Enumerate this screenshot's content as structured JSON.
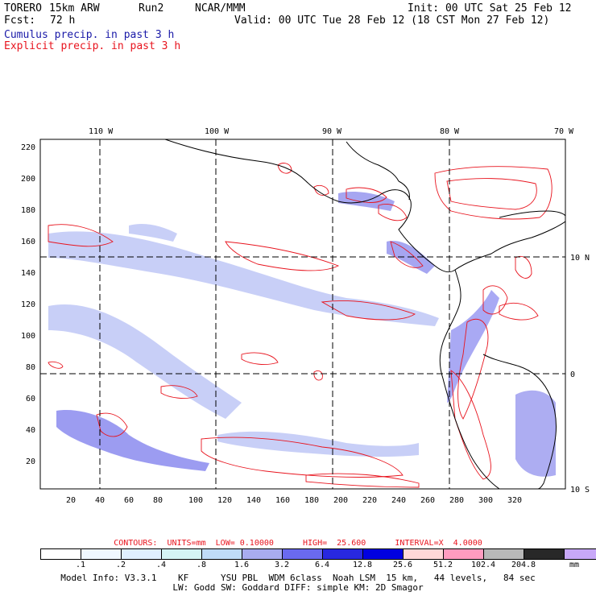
{
  "header": {
    "model": "TORERO",
    "grid": "15km ARW",
    "run": "Run2",
    "org": "NCAR/MMM",
    "init": "Init: 00 UTC Sat 25 Feb 12",
    "fcst_label": "Fcst:",
    "fcst_value": "72 h",
    "valid": "Valid: 00 UTC Tue 28 Feb 12 (18 CST Mon 27 Feb 12)",
    "field1": "Cumulus precip. in past 3 h",
    "field2": "Explicit precip. in past 3 h"
  },
  "map": {
    "top_lon_labels": [
      "110 W",
      "100 W",
      "90 W",
      "80 W",
      "70 W"
    ],
    "right_lat_labels": [
      "10 N",
      "0",
      "10 S"
    ],
    "left_grid_labels": [
      "220",
      "200",
      "180",
      "160",
      "140",
      "120",
      "100",
      "80",
      "60",
      "40",
      "20"
    ],
    "bottom_grid_labels": [
      "20",
      "40",
      "60",
      "80",
      "100",
      "120",
      "140",
      "160",
      "180",
      "200",
      "220",
      "240",
      "260",
      "280",
      "300",
      "320"
    ],
    "grid_lines": "dashed lat/lon every 10 degrees",
    "cumulus_color": "#3b3bdc",
    "explicit_color": "#e8141e",
    "coast_color": "#000000"
  },
  "contours": {
    "text": "CONTOURS:  UNITS=mm  LOW= 0.10000      HIGH=  25.600      INTERVAL=X  4.0000"
  },
  "legend": {
    "colors": [
      "#ffffff",
      "#f0f8ff",
      "#e0f0ff",
      "#d4f4f4",
      "#c0dcf8",
      "#a8acf0",
      "#6a6af0",
      "#2828e0",
      "#0000e0",
      "#ffd8d8",
      "#ff9cc0",
      "#b8b8b8",
      "#282828",
      "#c8a8f8"
    ],
    "ticks": [
      ".1",
      ".2",
      ".4",
      ".8",
      "1.6",
      "3.2",
      "6.4",
      "12.8",
      "25.6",
      "51.2",
      "102.4",
      "204.8"
    ],
    "unit": "mm"
  },
  "footer": {
    "line1": "Model Info: V3.3.1    KF      YSU PBL  WDM 6class  Noah LSM  15 km,   44 levels,   84 sec",
    "line2": "LW: Godd SW: Goddard DIFF: simple KM: 2D Smagor"
  }
}
